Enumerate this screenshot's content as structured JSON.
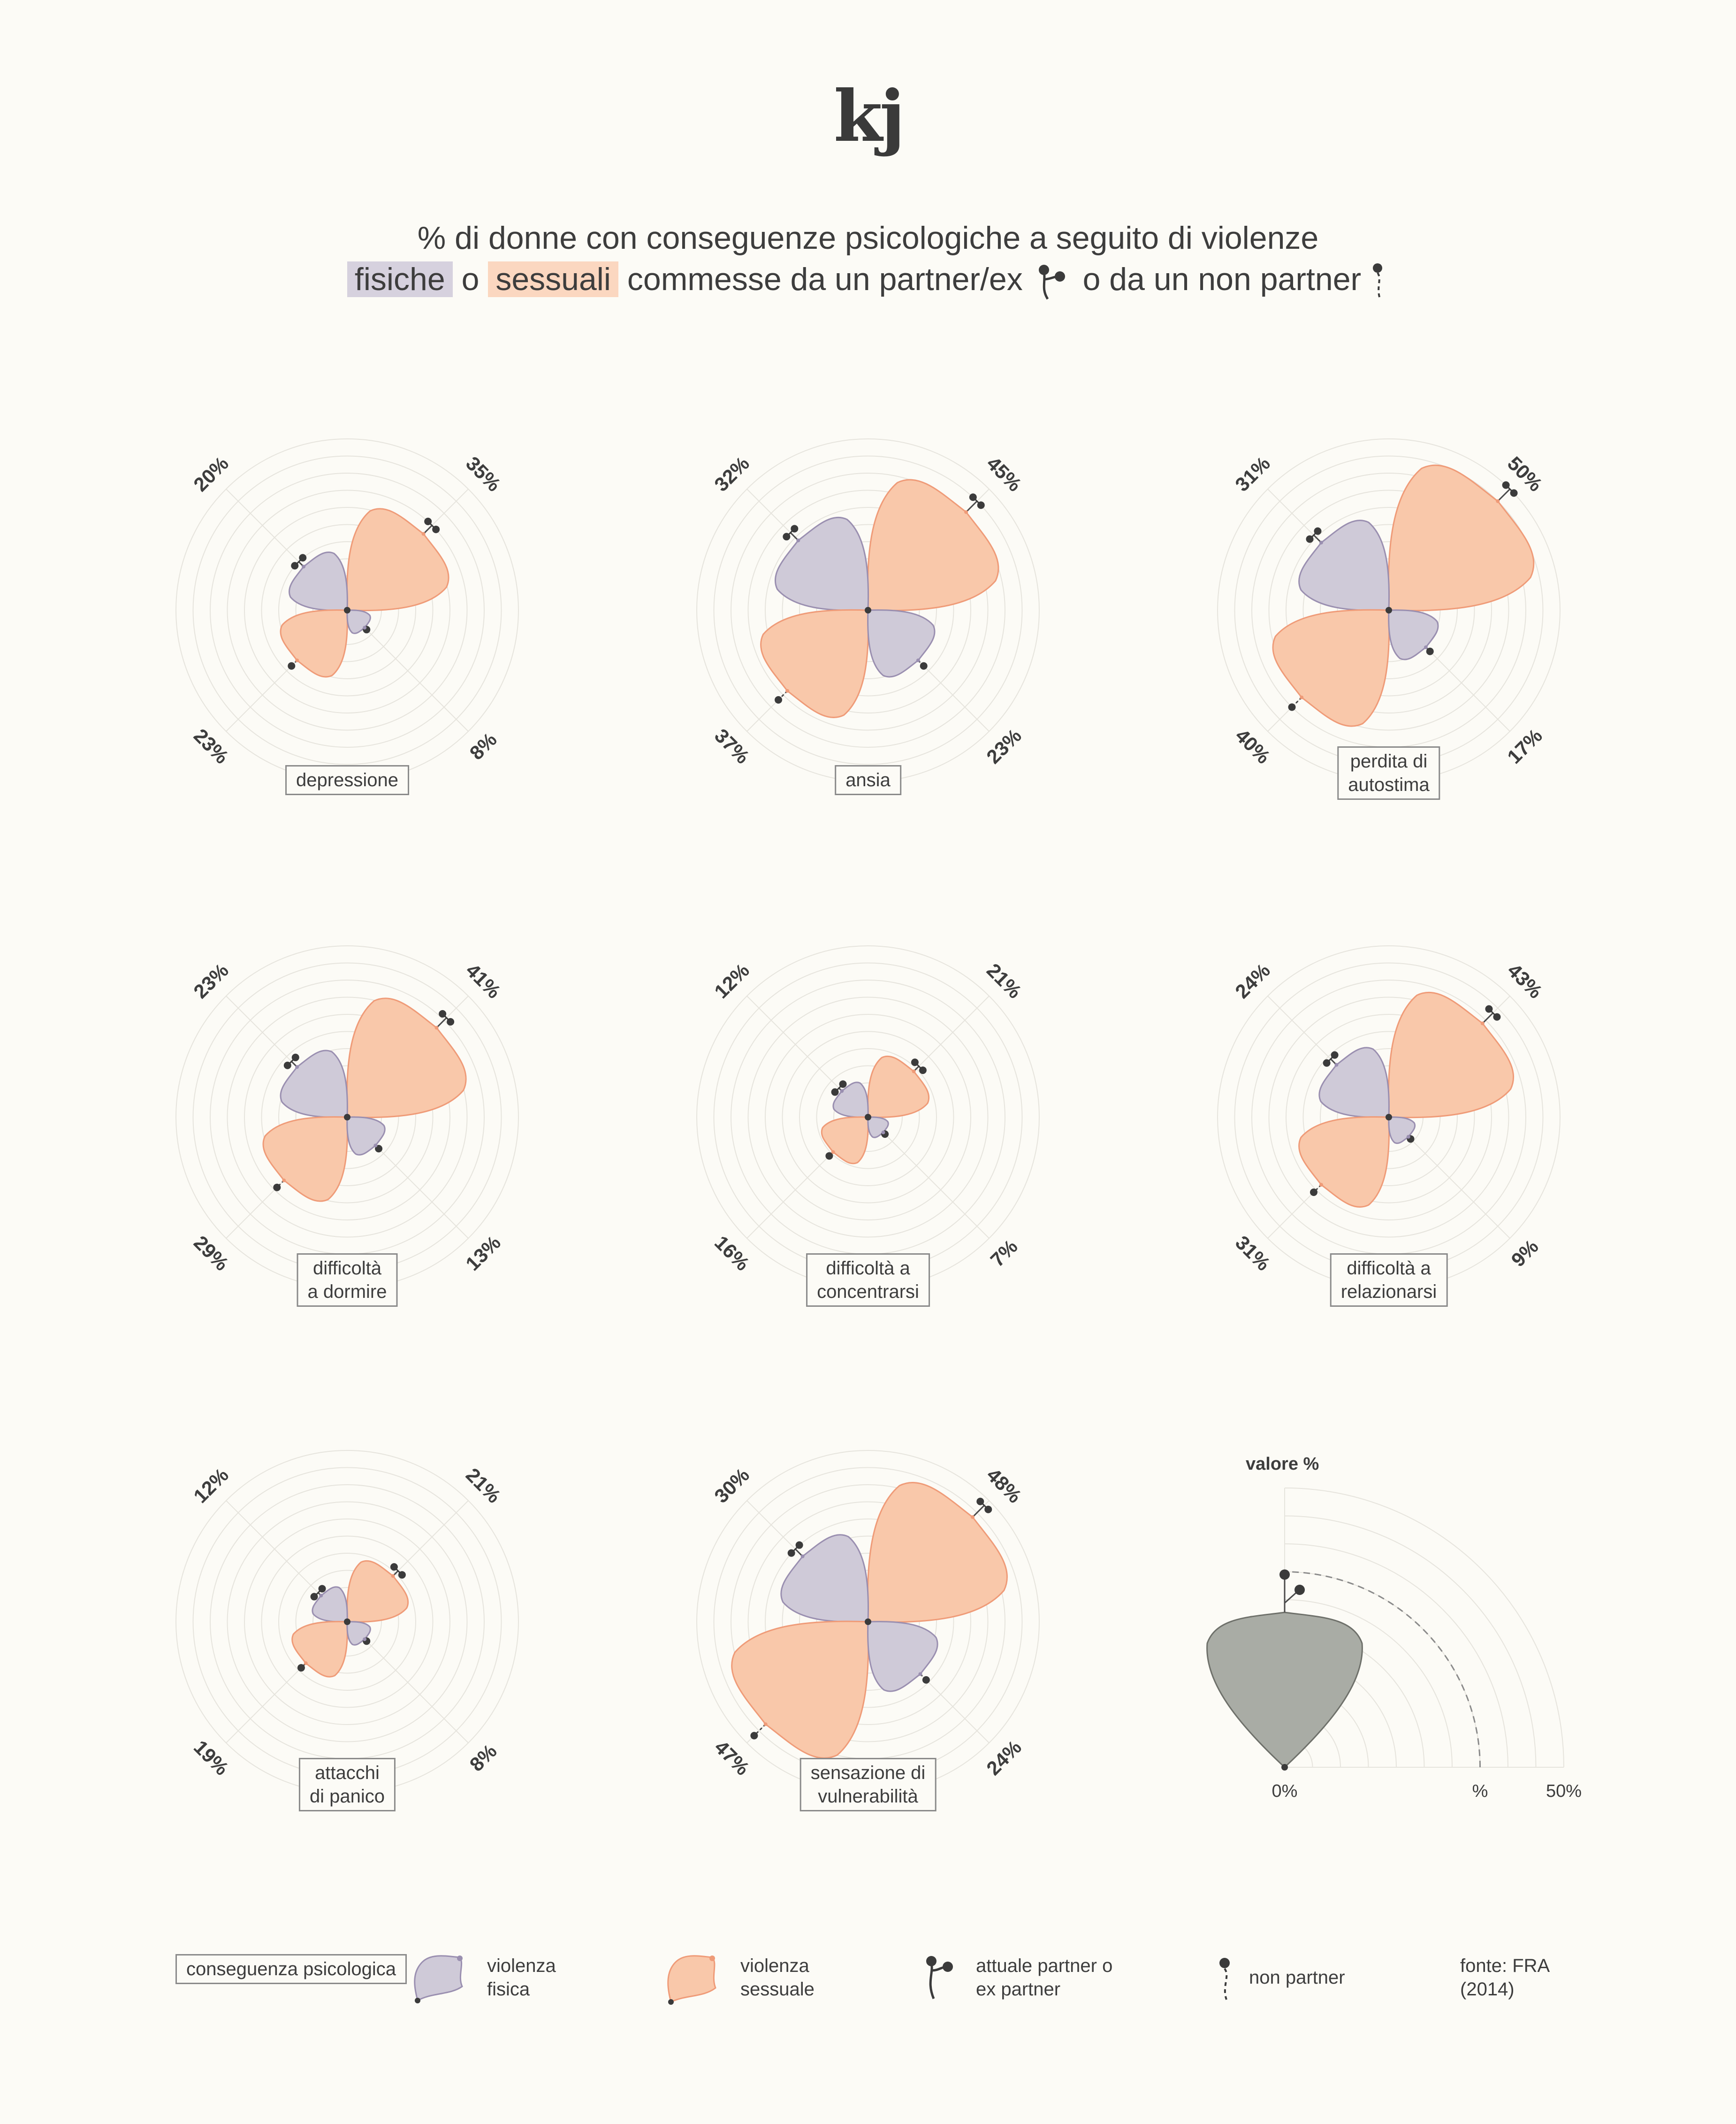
{
  "header": {
    "logo": "kj",
    "line1": "% di donne con conseguenze psicologiche a seguito di violenze",
    "physical_word": "fisiche",
    "or_word": "o",
    "sexual_word": "sessuali",
    "middle": "commesse da un partner/ex",
    "end": "o da un non partner"
  },
  "colors": {
    "physical_fill": "#cfcad8",
    "physical_stroke": "#9a8fb0",
    "sexual_fill": "#f9c8aa",
    "sexual_stroke": "#ef9b78",
    "reference_fill": "#a9aca5",
    "marker": "#3b3b3b"
  },
  "chart_data": [
    {
      "type": "radial-petal",
      "label": "depressione",
      "series": [
        {
          "name": "sexual-partner",
          "value": 35
        },
        {
          "name": "physical-partner",
          "value": 20
        },
        {
          "name": "sexual-nonpartner",
          "value": 23
        },
        {
          "name": "physical-nonpartner",
          "value": 8
        }
      ]
    },
    {
      "type": "radial-petal",
      "label": "ansia",
      "series": [
        {
          "name": "sexual-partner",
          "value": 45
        },
        {
          "name": "physical-partner",
          "value": 32
        },
        {
          "name": "sexual-nonpartner",
          "value": 37
        },
        {
          "name": "physical-nonpartner",
          "value": 23
        }
      ]
    },
    {
      "type": "radial-petal",
      "label": "perdita di autostima",
      "series": [
        {
          "name": "sexual-partner",
          "value": 50
        },
        {
          "name": "physical-partner",
          "value": 31
        },
        {
          "name": "sexual-nonpartner",
          "value": 40
        },
        {
          "name": "physical-nonpartner",
          "value": 17
        }
      ]
    },
    {
      "type": "radial-petal",
      "label": "difficoltà a dormire",
      "series": [
        {
          "name": "sexual-partner",
          "value": 41
        },
        {
          "name": "physical-partner",
          "value": 23
        },
        {
          "name": "sexual-nonpartner",
          "value": 29
        },
        {
          "name": "physical-nonpartner",
          "value": 13
        }
      ]
    },
    {
      "type": "radial-petal",
      "label": "difficoltà a concentrarsi",
      "series": [
        {
          "name": "sexual-partner",
          "value": 21
        },
        {
          "name": "physical-partner",
          "value": 12
        },
        {
          "name": "sexual-nonpartner",
          "value": 16
        },
        {
          "name": "physical-nonpartner",
          "value": 7
        }
      ]
    },
    {
      "type": "radial-petal",
      "label": "difficoltà a relazionarsi",
      "series": [
        {
          "name": "sexual-partner",
          "value": 43
        },
        {
          "name": "physical-partner",
          "value": 24
        },
        {
          "name": "sexual-nonpartner",
          "value": 31
        },
        {
          "name": "physical-nonpartner",
          "value": 9
        }
      ]
    },
    {
      "type": "radial-petal",
      "label": "attacchi di panico",
      "series": [
        {
          "name": "sexual-partner",
          "value": 21
        },
        {
          "name": "physical-partner",
          "value": 12
        },
        {
          "name": "sexual-nonpartner",
          "value": 19
        },
        {
          "name": "physical-nonpartner",
          "value": 8
        }
      ]
    },
    {
      "type": "radial-petal",
      "label": "sensazione di vulnerabilità",
      "series": [
        {
          "name": "sexual-partner",
          "value": 48
        },
        {
          "name": "physical-partner",
          "value": 30
        },
        {
          "name": "sexual-nonpartner",
          "value": 47
        },
        {
          "name": "physical-nonpartner",
          "value": 24
        }
      ]
    }
  ],
  "reference": {
    "title": "valore %",
    "ticks": [
      "0%",
      "%",
      "50%"
    ],
    "max": 50
  },
  "legend": {
    "category": "conseguenza psicologica",
    "physical": "violenza fisica",
    "sexual": "violenza sessuale",
    "partner": "attuale partner o ex partner",
    "nonpartner": "non partner",
    "source": "fonte: FRA (2014)"
  }
}
